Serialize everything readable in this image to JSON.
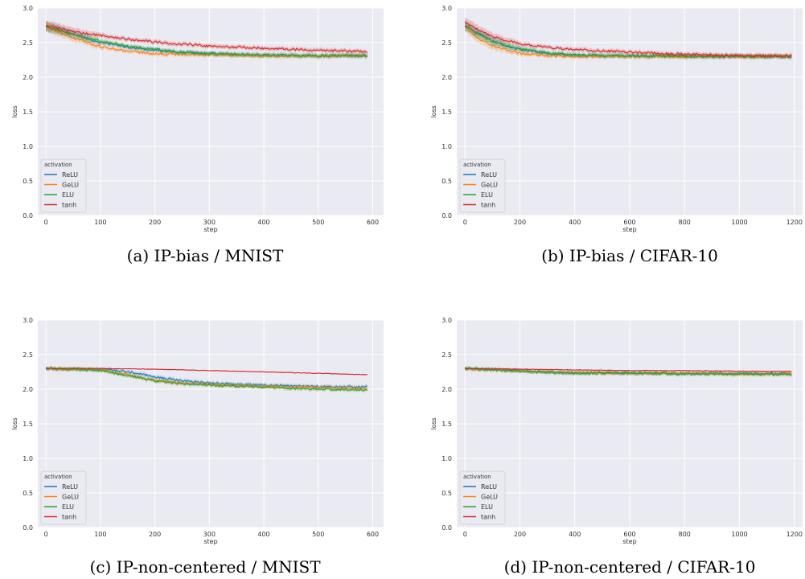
{
  "figure": {
    "captions": [
      "(a) IP-bias / MNIST",
      "(b) IP-bias / CIFAR-10",
      "(c) IP-non-centered / MNIST",
      "(d) IP-non-centered / CIFAR-10"
    ]
  },
  "colors": {
    "ReLU": "#1f77b4",
    "GeLU": "#ff7f0e",
    "ELU": "#2ca02c",
    "tanh": "#d62728",
    "panel_bg": "#eaeaf2",
    "grid": "#ffffff"
  },
  "chart_data": [
    {
      "type": "line",
      "caption": "(a) IP-bias / MNIST",
      "xlabel": "step",
      "ylabel": "loss",
      "xlim": [
        -15,
        620
      ],
      "ylim": [
        0,
        3.0
      ],
      "xticks": [
        0,
        100,
        200,
        300,
        400,
        500,
        600
      ],
      "yticks": [
        0.0,
        0.5,
        1.0,
        1.5,
        2.0,
        2.5,
        3.0
      ],
      "grid": true,
      "legend_title": "activation",
      "legend_position": "lower-left",
      "series": [
        {
          "name": "ReLU",
          "x": [
            0,
            50,
            100,
            150,
            200,
            250,
            300,
            400,
            500,
            590
          ],
          "y": [
            2.74,
            2.62,
            2.5,
            2.43,
            2.39,
            2.36,
            2.34,
            2.32,
            2.31,
            2.31
          ]
        },
        {
          "name": "GeLU",
          "x": [
            0,
            50,
            100,
            150,
            200,
            250,
            300,
            400,
            500,
            590
          ],
          "y": [
            2.73,
            2.57,
            2.44,
            2.38,
            2.34,
            2.33,
            2.32,
            2.31,
            2.31,
            2.31
          ]
        },
        {
          "name": "ELU",
          "x": [
            0,
            50,
            100,
            150,
            200,
            250,
            300,
            400,
            500,
            590
          ],
          "y": [
            2.73,
            2.62,
            2.52,
            2.45,
            2.4,
            2.36,
            2.34,
            2.32,
            2.31,
            2.31
          ]
        },
        {
          "name": "tanh",
          "x": [
            0,
            50,
            100,
            150,
            200,
            250,
            300,
            400,
            500,
            590
          ],
          "y": [
            2.75,
            2.66,
            2.6,
            2.55,
            2.51,
            2.48,
            2.45,
            2.42,
            2.39,
            2.37
          ]
        }
      ]
    },
    {
      "type": "line",
      "caption": "(b) IP-bias / CIFAR-10",
      "xlabel": "step",
      "ylabel": "loss",
      "xlim": [
        -30,
        1230
      ],
      "ylim": [
        0,
        3.0
      ],
      "xticks": [
        0,
        200,
        400,
        600,
        800,
        1000,
        1200
      ],
      "yticks": [
        0.0,
        0.5,
        1.0,
        1.5,
        2.0,
        2.5,
        3.0
      ],
      "grid": true,
      "legend_title": "activation",
      "legend_position": "lower-left",
      "series": [
        {
          "name": "ReLU",
          "x": [
            0,
            50,
            100,
            200,
            300,
            400,
            600,
            800,
            1000,
            1190
          ],
          "y": [
            2.75,
            2.63,
            2.52,
            2.4,
            2.34,
            2.32,
            2.31,
            2.31,
            2.3,
            2.3
          ]
        },
        {
          "name": "GeLU",
          "x": [
            0,
            50,
            100,
            200,
            300,
            400,
            600,
            800,
            1000,
            1190
          ],
          "y": [
            2.72,
            2.56,
            2.45,
            2.34,
            2.31,
            2.3,
            2.3,
            2.3,
            2.3,
            2.3
          ]
        },
        {
          "name": "ELU",
          "x": [
            0,
            50,
            100,
            200,
            300,
            400,
            600,
            800,
            1000,
            1190
          ],
          "y": [
            2.74,
            2.62,
            2.52,
            2.41,
            2.35,
            2.32,
            2.31,
            2.3,
            2.3,
            2.3
          ]
        },
        {
          "name": "tanh",
          "x": [
            0,
            50,
            100,
            200,
            300,
            400,
            600,
            800,
            1000,
            1190
          ],
          "y": [
            2.79,
            2.68,
            2.59,
            2.48,
            2.43,
            2.4,
            2.36,
            2.33,
            2.31,
            2.31
          ]
        }
      ]
    },
    {
      "type": "line",
      "caption": "(c) IP-non-centered / MNIST",
      "xlabel": "step",
      "ylabel": "loss",
      "xlim": [
        -15,
        620
      ],
      "ylim": [
        0,
        3.0
      ],
      "xticks": [
        0,
        100,
        200,
        300,
        400,
        500,
        600
      ],
      "yticks": [
        0.0,
        0.5,
        1.0,
        1.5,
        2.0,
        2.5,
        3.0
      ],
      "grid": true,
      "legend_title": "activation",
      "legend_position": "lower-left",
      "series": [
        {
          "name": "ReLU",
          "x": [
            0,
            100,
            150,
            200,
            250,
            300,
            350,
            400,
            500,
            590
          ],
          "y": [
            2.3,
            2.29,
            2.25,
            2.18,
            2.12,
            2.09,
            2.07,
            2.06,
            2.04,
            2.03
          ]
        },
        {
          "name": "GeLU",
          "x": [
            0,
            100,
            150,
            200,
            250,
            300,
            350,
            400,
            500,
            590
          ],
          "y": [
            2.3,
            2.28,
            2.21,
            2.13,
            2.09,
            2.07,
            2.05,
            2.04,
            2.02,
            2.01
          ]
        },
        {
          "name": "ELU",
          "x": [
            0,
            100,
            150,
            200,
            250,
            300,
            350,
            400,
            500,
            590
          ],
          "y": [
            2.3,
            2.27,
            2.2,
            2.12,
            2.08,
            2.06,
            2.04,
            2.03,
            2.0,
            1.99
          ]
        },
        {
          "name": "tanh",
          "x": [
            0,
            100,
            200,
            300,
            400,
            500,
            590
          ],
          "y": [
            2.3,
            2.3,
            2.29,
            2.27,
            2.25,
            2.23,
            2.21
          ]
        }
      ]
    },
    {
      "type": "line",
      "caption": "(d) IP-non-centered / CIFAR-10",
      "xlabel": "step",
      "ylabel": "loss",
      "xlim": [
        -30,
        1230
      ],
      "ylim": [
        0,
        3.0
      ],
      "xticks": [
        0,
        200,
        400,
        600,
        800,
        1000,
        1200
      ],
      "yticks": [
        0.0,
        0.5,
        1.0,
        1.5,
        2.0,
        2.5,
        3.0
      ],
      "grid": true,
      "legend_title": "activation",
      "legend_position": "lower-left",
      "series": [
        {
          "name": "ReLU",
          "x": [
            0,
            100,
            200,
            300,
            400,
            600,
            800,
            1000,
            1190
          ],
          "y": [
            2.3,
            2.29,
            2.27,
            2.25,
            2.24,
            2.24,
            2.23,
            2.23,
            2.23
          ]
        },
        {
          "name": "GeLU",
          "x": [
            0,
            100,
            200,
            300,
            400,
            600,
            800,
            1000,
            1190
          ],
          "y": [
            2.3,
            2.28,
            2.26,
            2.25,
            2.24,
            2.23,
            2.23,
            2.22,
            2.22
          ]
        },
        {
          "name": "ELU",
          "x": [
            0,
            100,
            200,
            300,
            400,
            600,
            800,
            1000,
            1190
          ],
          "y": [
            2.3,
            2.28,
            2.26,
            2.24,
            2.23,
            2.23,
            2.22,
            2.22,
            2.21
          ]
        },
        {
          "name": "tanh",
          "x": [
            0,
            200,
            400,
            600,
            800,
            1000,
            1190
          ],
          "y": [
            2.3,
            2.29,
            2.28,
            2.27,
            2.27,
            2.26,
            2.26
          ]
        }
      ]
    }
  ]
}
